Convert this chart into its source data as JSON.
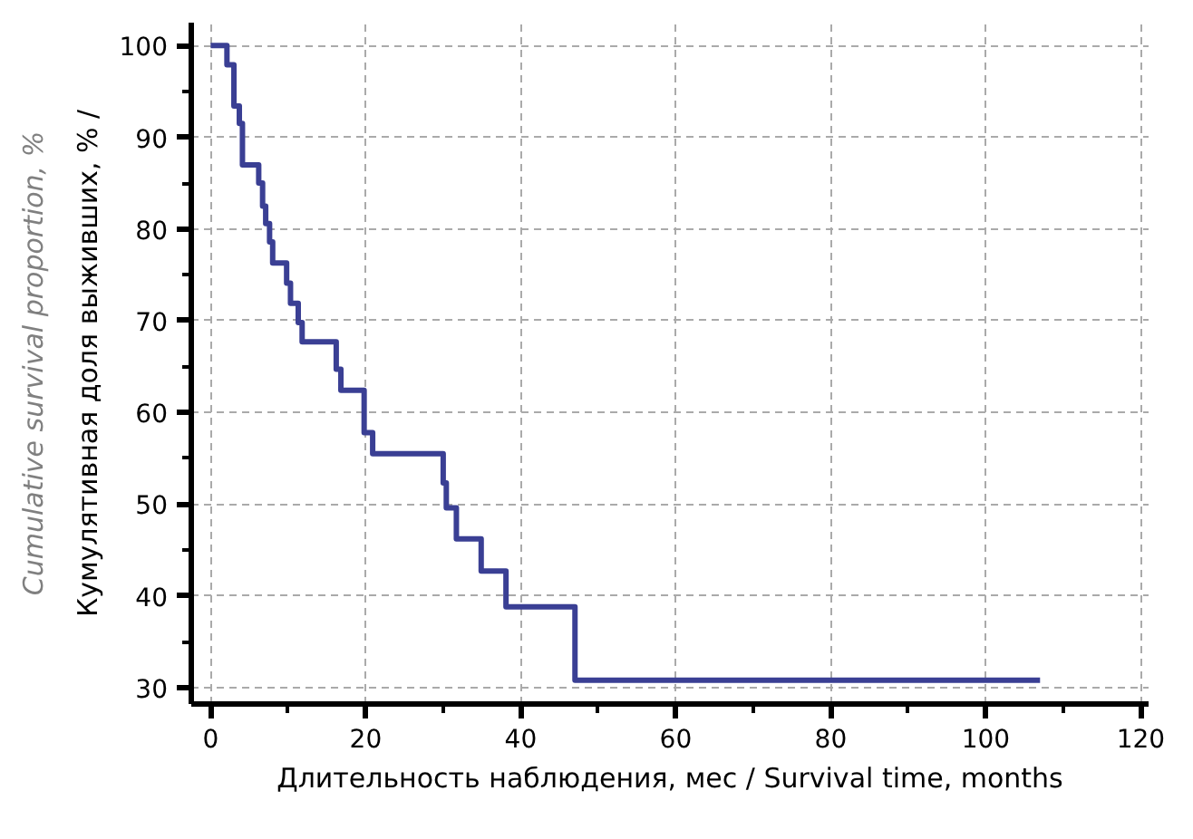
{
  "chart_data": {
    "type": "step",
    "xlabel": "Длительность наблюдения, мес / Survival time, months",
    "ylabel": "Кумулятивная доля выживших, % / Cumulative survival proportion, %",
    "x": [
      0,
      2.1,
      3.0,
      3.7,
      4.1,
      6.2,
      6.7,
      7.1,
      7.6,
      8.0,
      9.8,
      10.3,
      11.3,
      11.8,
      16.2,
      16.8,
      19.8,
      20.9,
      30.0,
      30.4,
      31.7,
      34.9,
      38.1,
      47.0,
      107
    ],
    "series": [
      {
        "color": "#3a3f94",
        "values": [
          100,
          97.9,
          93.4,
          91.5,
          87.0,
          85.0,
          82.5,
          80.6,
          78.6,
          76.3,
          74.1,
          71.9,
          69.8,
          67.7,
          64.7,
          62.4,
          57.8,
          55.5,
          52.3,
          49.6,
          46.2,
          42.7,
          38.8,
          30.8,
          30.8
        ]
      }
    ],
    "xlim": [
      -2.5,
      121
    ],
    "ylim": [
      28.2,
      102.5
    ],
    "xticks": [
      0,
      {
        "value": 10,
        "label": null
      },
      20,
      {
        "value": 30,
        "label": null
      },
      40,
      {
        "value": 50,
        "label": null
      },
      60,
      {
        "value": 70,
        "label": null
      },
      80,
      {
        "value": 90,
        "label": null
      },
      100,
      {
        "value": 110,
        "label": null
      },
      120
    ],
    "yticks": [
      30,
      {
        "value": 35,
        "label": null
      },
      40,
      {
        "value": 45,
        "label": null
      },
      50,
      {
        "value": 55,
        "label": null
      },
      60,
      {
        "value": 65,
        "label": null
      },
      70,
      {
        "value": 75,
        "label": null
      },
      80,
      {
        "value": 85,
        "label": null
      },
      90,
      {
        "value": 95,
        "label": null
      },
      100
    ],
    "grid": true,
    "line_style": "solid",
    "marker": "none"
  }
}
